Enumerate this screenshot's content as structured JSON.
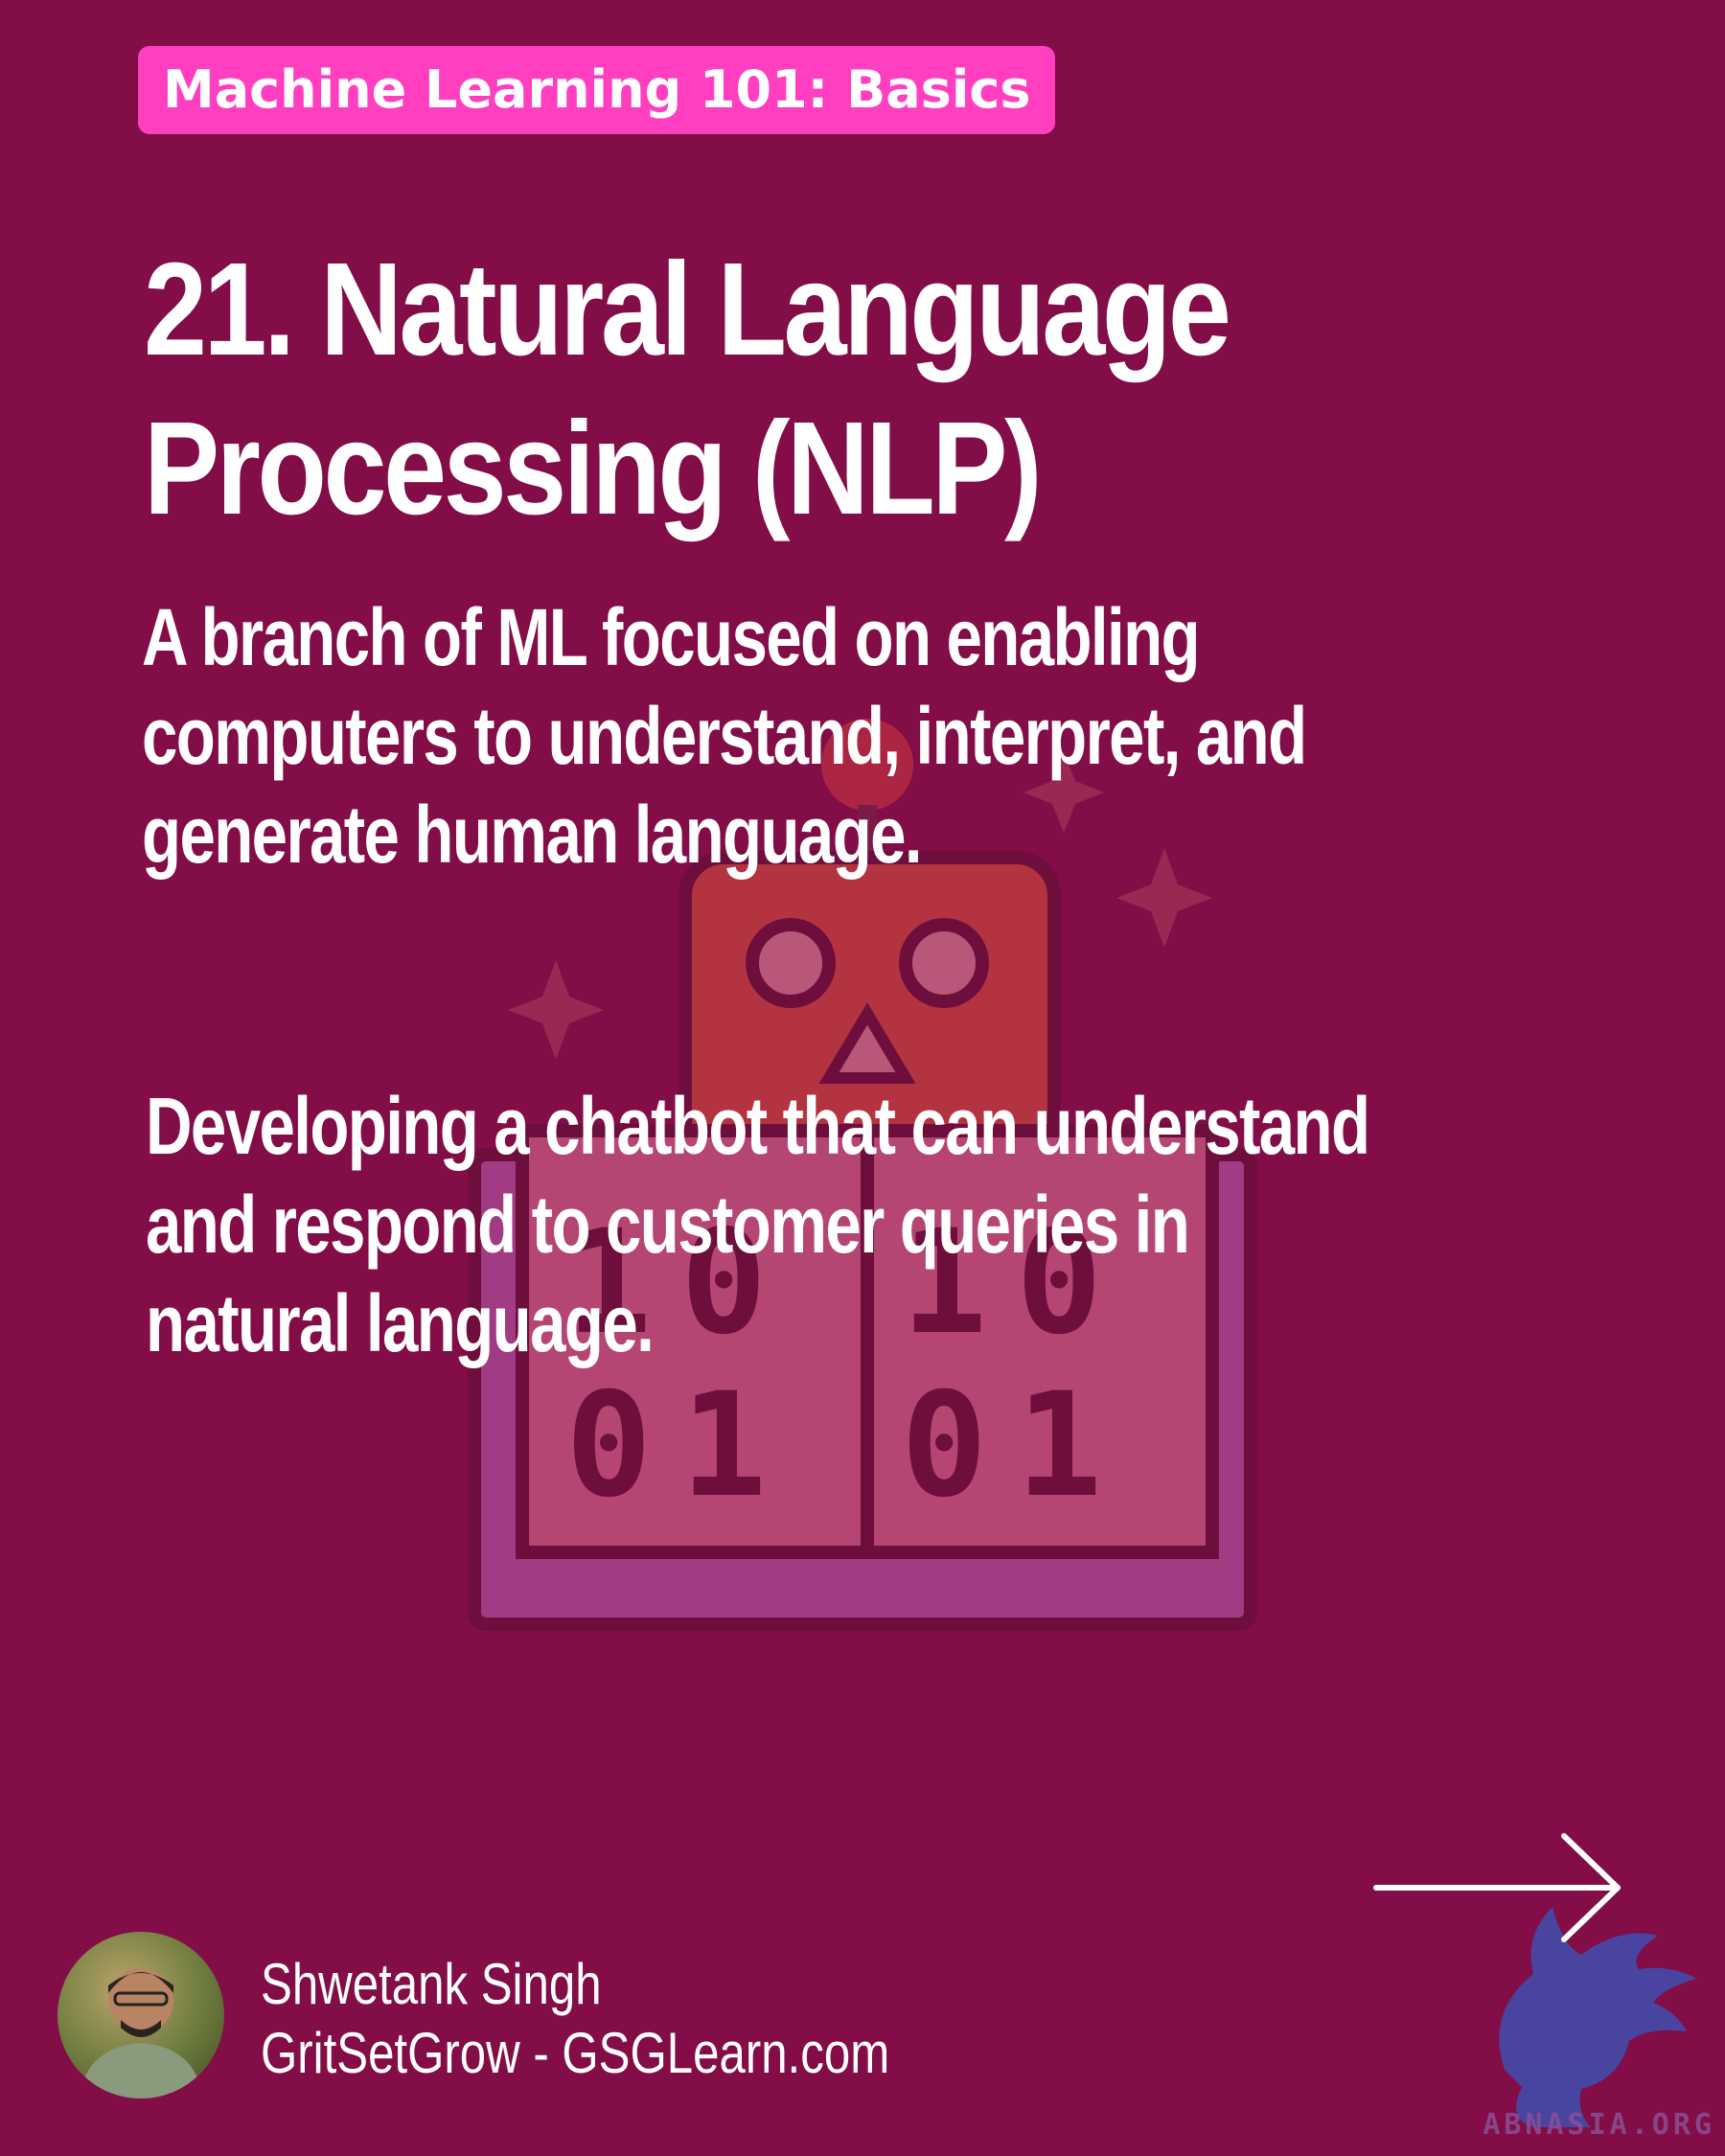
{
  "series_tag": "Machine Learning 101: Basics",
  "title_line1": "21. Natural Language",
  "title_line2": "Processing (NLP)",
  "definition_lines": [
    "A branch of ML focused on enabling",
    "computers to understand, interpret, and",
    "generate human language."
  ],
  "example_lines": [
    "Developing a chatbot that can understand",
    "and respond to customer queries in",
    "natural language."
  ],
  "illustration": {
    "digits_top": [
      "1",
      "0",
      "1",
      "0"
    ],
    "digits_bottom": [
      "0",
      "1",
      "0",
      "1"
    ]
  },
  "author": {
    "name": "Shwetank Singh",
    "site": "GritSetGrow - GSGLearn.com"
  },
  "watermark_text": "ABNASIA.ORG",
  "colors": {
    "background": "#820d47",
    "tag_background": "#ff3fbf",
    "text": "#ffffff"
  },
  "icons": [
    "robot-illustration-icon",
    "right-arrow-icon",
    "griffin-watermark-icon",
    "sparkle-icon"
  ]
}
